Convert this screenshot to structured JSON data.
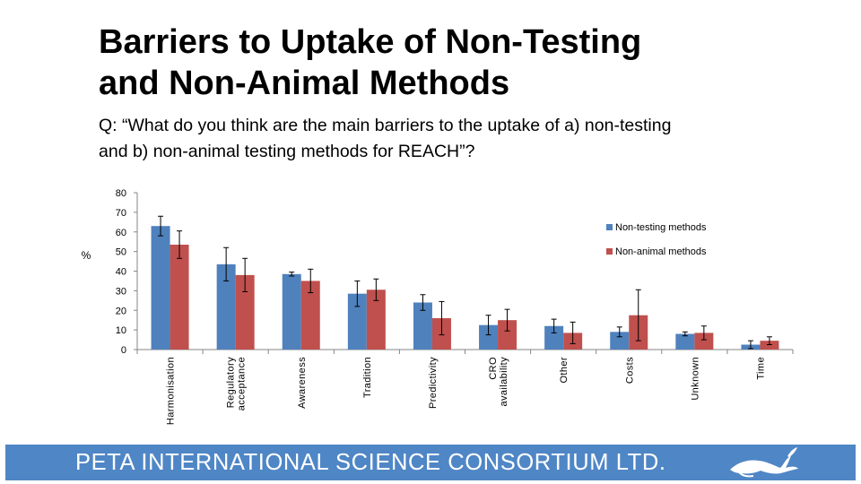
{
  "slide": {
    "title_line1": "Barriers to Uptake of Non-Testing",
    "title_line2": "and Non-Animal Methods",
    "subtitle_line1": "Q: “What do you think are the main barriers to the uptake of a) non-testing",
    "subtitle_line2": "and b) non-animal testing methods for REACH”?"
  },
  "footer": {
    "text": "PETA INTERNATIONAL SCIENCE CONSORTIUM LTD.",
    "logo_icon": "rabbit-icon",
    "band_color": "#4f86c6"
  },
  "chart_data": {
    "type": "bar",
    "ylabel": "%",
    "ylim": [
      0,
      80
    ],
    "yticks": [
      0,
      10,
      20,
      30,
      40,
      50,
      60,
      70,
      80
    ],
    "grid": false,
    "legend_position": "top-right",
    "categories": [
      "Harmonisation",
      "Regulatory acceptance",
      "Awareness",
      "Tradition",
      "Predictivity",
      "CRO availability",
      "Other",
      "Costs",
      "Unknown",
      "Time"
    ],
    "series": [
      {
        "name": "Non-testing methods",
        "color": "#4f81bd",
        "values": [
          63,
          43.5,
          38.5,
          28.5,
          24,
          12.5,
          12,
          9,
          8,
          2.5
        ],
        "error": [
          5,
          8.5,
          1,
          6.5,
          4,
          5,
          3.5,
          2.5,
          1,
          2
        ]
      },
      {
        "name": "Non-animal methods",
        "color": "#c0504d",
        "values": [
          53.5,
          38,
          35,
          30.5,
          16,
          15,
          8.5,
          17.5,
          8.5,
          4.5
        ],
        "error": [
          7,
          8.5,
          6,
          5.5,
          8.5,
          5.5,
          5.5,
          13,
          3.5,
          2
        ]
      }
    ]
  }
}
